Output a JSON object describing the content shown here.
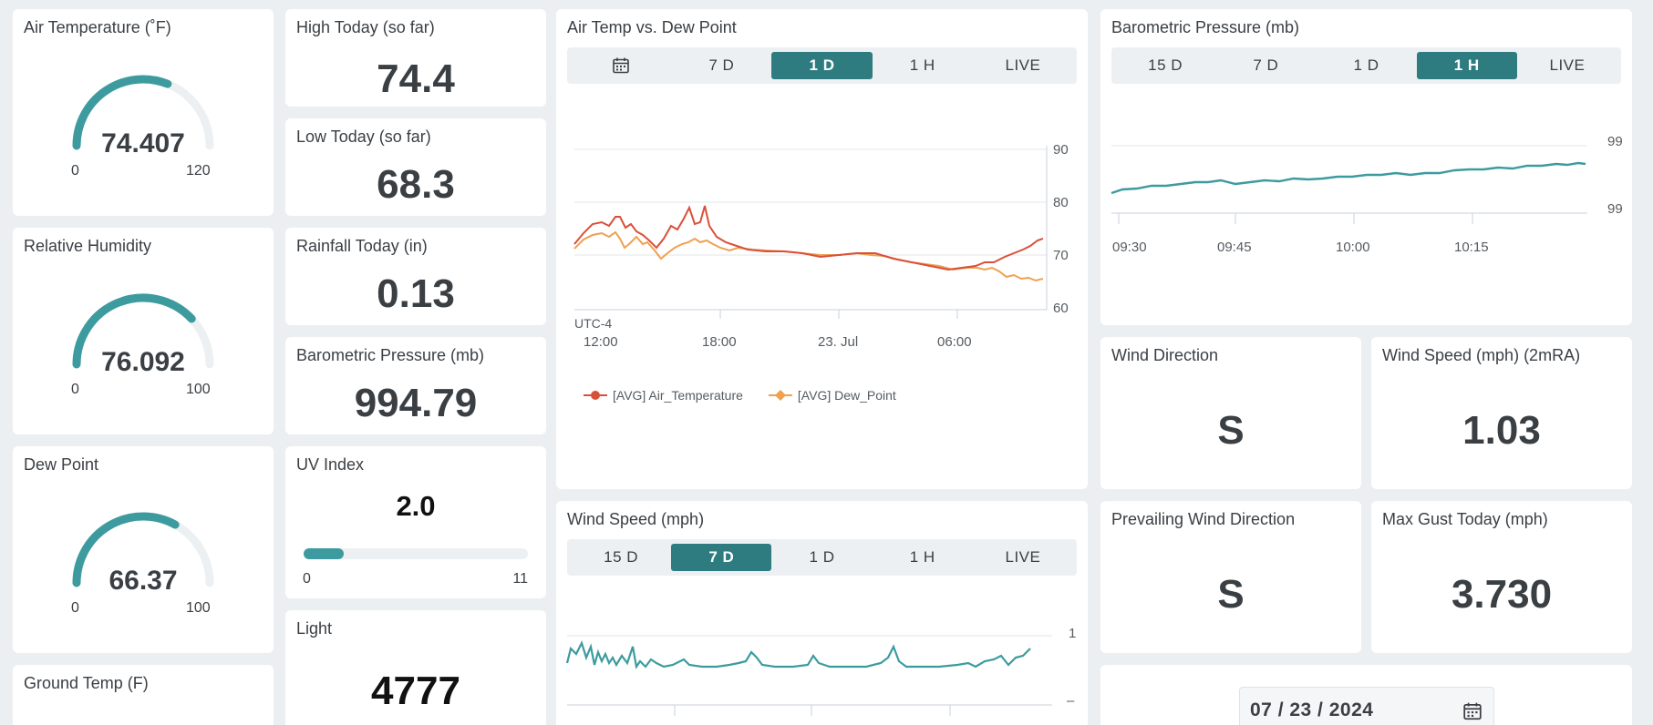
{
  "gauges": [
    {
      "title": "Air Temperature (˚F)",
      "value": "74.407",
      "min": "0",
      "max": "120",
      "fraction": 0.62
    },
    {
      "title": "Relative Humidity",
      "value": "76.092",
      "min": "0",
      "max": "100",
      "fraction": 0.76
    },
    {
      "title": "Dew Point",
      "value": "66.37",
      "min": "0",
      "max": "100",
      "fraction": 0.66
    }
  ],
  "ground_temp": {
    "title": "Ground Temp (F)"
  },
  "stats": [
    {
      "title": "High Today (so far)",
      "value": "74.4"
    },
    {
      "title": "Low Today (so far)",
      "value": "68.3"
    },
    {
      "title": "Rainfall Today (in)",
      "value": "0.13"
    },
    {
      "title": "Barometric Pressure (mb)",
      "value": "994.79"
    }
  ],
  "uv": {
    "title": "UV Index",
    "value": "2.0",
    "min": "0",
    "max": "11",
    "fraction": 0.18
  },
  "light": {
    "title": "Light",
    "value": "4777"
  },
  "air_chart": {
    "title": "Air Temp vs. Dew Point",
    "tabs": [
      "calendar-icon",
      "7 D",
      "1 D",
      "1 H",
      "LIVE"
    ],
    "active_tab": 2,
    "timezone": "UTC-4",
    "x_ticks": [
      "12:00",
      "18:00",
      "23. Jul",
      "06:00"
    ],
    "y_ticks": [
      "90",
      "80",
      "70",
      "60"
    ],
    "legend": [
      "[AVG] Air_Temperature",
      "[AVG] Dew_Point"
    ],
    "colors": {
      "air": "#d9503a",
      "dew": "#f0a050"
    }
  },
  "wind_chart": {
    "title": "Wind Speed (mph)",
    "tabs": [
      "15 D",
      "7 D",
      "1 D",
      "1 H",
      "LIVE"
    ],
    "active_tab": 1,
    "y_ticks": [
      "1",
      "–"
    ],
    "color": "#3d9b9f"
  },
  "baro_chart": {
    "title": "Barometric Pressure (mb)",
    "tabs": [
      "15 D",
      "7 D",
      "1 D",
      "1 H",
      "LIVE"
    ],
    "active_tab": 3,
    "x_ticks": [
      "09:30",
      "09:45",
      "10:00",
      "10:15"
    ],
    "y_ticks": [
      "99",
      "99"
    ],
    "color": "#3d9b9f"
  },
  "wind_direction": {
    "title": "Wind Direction",
    "value": "S"
  },
  "wind_speed": {
    "title": "Wind Speed (mph) (2mRA)",
    "value": "1.03"
  },
  "prevailing": {
    "title": "Prevailing Wind Direction",
    "value": "S"
  },
  "max_gust": {
    "title": "Max Gust Today (mph)",
    "value": "3.730"
  },
  "date_picker": {
    "value": "07 / 23 / 2024"
  },
  "theme": {
    "accent": "#2e7c80",
    "gauge": "#3d9b9f",
    "track": "#edf0f2"
  }
}
